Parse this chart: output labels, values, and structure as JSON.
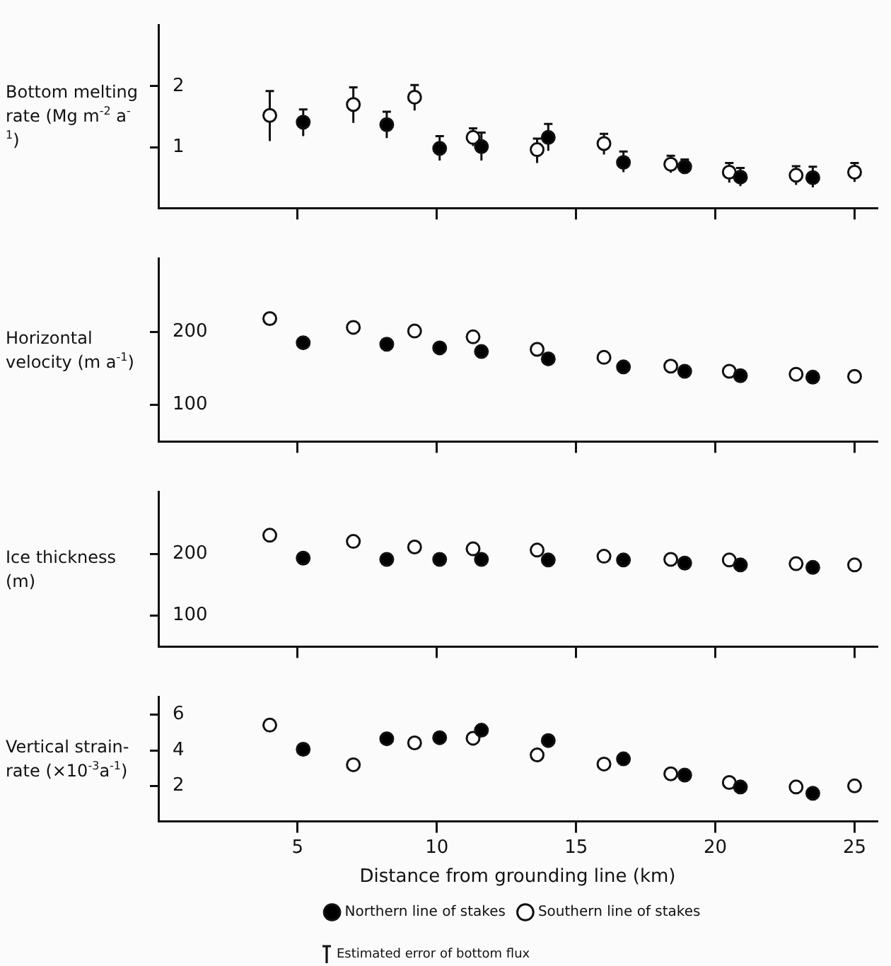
{
  "chart_data": [
    {
      "type": "scatter",
      "ylabel": "Bottom melting rate (Mg m$^{-2}$ a$^{-1}$)",
      "xlim": [
        0,
        25.8
      ],
      "xticks": [
        5,
        10,
        15,
        20,
        25
      ],
      "ylim": [
        0,
        3
      ],
      "yticks": [
        1,
        2
      ],
      "tick_labels": "y",
      "marker": "circle",
      "annotations": [
        "Estimated error of bottom flux"
      ],
      "series": [
        {
          "color": "#000000",
          "x": [
            5.2,
            8.2,
            10.1,
            11.6,
            14.0,
            16.7,
            18.9,
            20.9,
            23.5
          ],
          "values": [
            1.41,
            1.37,
            0.98,
            1.01,
            1.16,
            0.75,
            0.68,
            0.51,
            0.5
          ],
          "errors": [
            [
              1.18,
              1.62
            ],
            [
              1.15,
              1.58
            ],
            [
              0.78,
              1.18
            ],
            [
              0.78,
              1.24
            ],
            [
              0.94,
              1.38
            ],
            [
              0.59,
              0.93
            ],
            [
              0.56,
              0.8
            ],
            [
              0.36,
              0.66
            ],
            [
              0.34,
              0.68
            ]
          ]
        },
        {
          "color": "#ffffff",
          "x": [
            4.0,
            7.0,
            9.2,
            11.3,
            13.6,
            16.0,
            18.4,
            20.5,
            22.9,
            25.0
          ],
          "values": [
            1.52,
            1.7,
            1.82,
            1.16,
            0.96,
            1.06,
            0.72,
            0.59,
            0.54,
            0.59
          ],
          "errors": [
            [
              1.1,
              1.92
            ],
            [
              1.4,
              1.98
            ],
            [
              1.6,
              2.02
            ],
            [
              1.02,
              1.31
            ],
            [
              0.74,
              1.14
            ],
            [
              0.88,
              1.22
            ],
            [
              0.58,
              0.86
            ],
            [
              0.42,
              0.74
            ],
            [
              0.38,
              0.69
            ],
            [
              0.43,
              0.74
            ]
          ]
        }
      ]
    },
    {
      "type": "scatter",
      "ylabel": "Horizontal velocity (m a$^{-1}$)",
      "xlim": [
        0,
        25.8
      ],
      "xticks": [
        5,
        10,
        15,
        20,
        25
      ],
      "ylim": [
        50,
        300
      ],
      "yticks": [
        100,
        200
      ],
      "tick_labels": "y",
      "marker": "circle",
      "series": [
        {
          "color": "#000000",
          "x": [
            5.2,
            8.2,
            10.1,
            11.6,
            14.0,
            16.7,
            18.9,
            20.9,
            23.5
          ],
          "values": [
            185,
            183,
            178,
            173,
            163,
            152,
            146,
            140,
            138
          ]
        },
        {
          "color": "#ffffff",
          "x": [
            4.0,
            7.0,
            9.2,
            11.3,
            13.6,
            16.0,
            18.4,
            20.5,
            22.9,
            25.0
          ],
          "values": [
            218,
            206,
            201,
            193,
            176,
            165,
            153,
            146,
            142,
            139
          ]
        }
      ]
    },
    {
      "type": "scatter",
      "ylabel": "Ice thickness (m)",
      "xlim": [
        0,
        25.8
      ],
      "xticks": [
        5,
        10,
        15,
        20,
        25
      ],
      "ylim": [
        50,
        300
      ],
      "yticks": [
        100,
        200
      ],
      "tick_labels": "y",
      "marker": "circle",
      "series": [
        {
          "color": "#000000",
          "x": [
            5.2,
            8.2,
            10.1,
            11.6,
            14.0,
            16.7,
            18.9,
            20.9,
            23.5
          ],
          "values": [
            193,
            191,
            191,
            191,
            190,
            190,
            185,
            182,
            178
          ]
        },
        {
          "color": "#ffffff",
          "x": [
            4.0,
            7.0,
            9.2,
            11.3,
            13.6,
            16.0,
            18.4,
            20.5,
            22.9,
            25.0
          ],
          "values": [
            230,
            220,
            211,
            208,
            206,
            196,
            191,
            190,
            184,
            182
          ]
        }
      ]
    },
    {
      "type": "scatter",
      "ylabel": "Vertical strain-rate (×10$^{-3}$a$^{-1}$)",
      "xlabel": "Distance from grounding line (km)",
      "xlim": [
        0,
        25.8
      ],
      "xticks": [
        5,
        10,
        15,
        20,
        25
      ],
      "ylim": [
        0,
        7
      ],
      "yticks": [
        2,
        4,
        6
      ],
      "marker": "circle",
      "legend": "bottom",
      "series": [
        {
          "name": "Northern line of stakes",
          "color": "#000000",
          "x": [
            5.2,
            8.2,
            10.1,
            11.6,
            14.0,
            16.7,
            18.9,
            20.9,
            23.5
          ],
          "values": [
            4.06,
            4.65,
            4.71,
            5.13,
            4.55,
            3.52,
            2.61,
            1.94,
            1.58
          ]
        },
        {
          "name": "Southern line of stakes",
          "color": "#ffffff",
          "x": [
            4.0,
            7.0,
            9.2,
            11.3,
            13.6,
            16.0,
            18.4,
            20.5,
            22.9,
            25.0
          ],
          "values": [
            5.42,
            3.19,
            4.42,
            4.68,
            3.74,
            3.23,
            2.68,
            2.19,
            1.94,
            2.0
          ]
        }
      ]
    }
  ]
}
